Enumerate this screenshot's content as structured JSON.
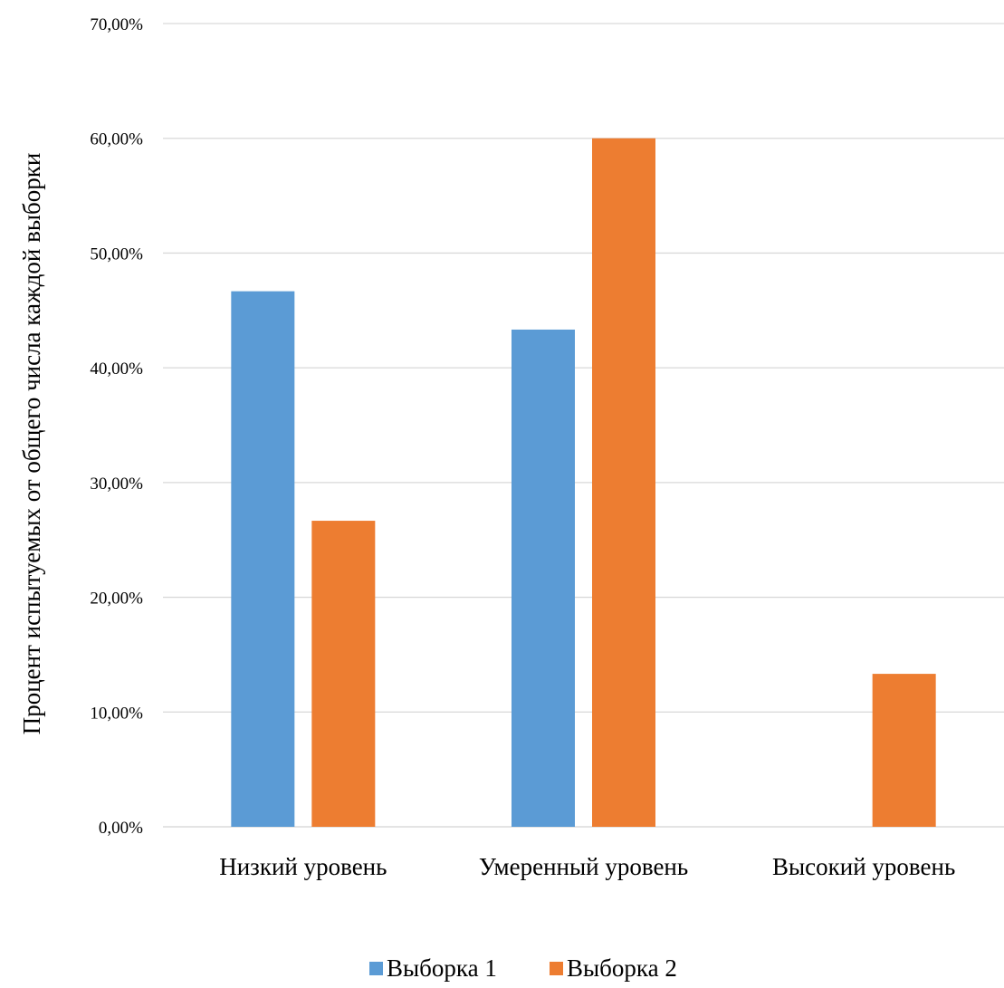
{
  "chart_data": {
    "type": "bar",
    "title": "",
    "xlabel": "",
    "ylabel": "Процент испытуемых от общего числа каждой выборки",
    "categories": [
      "Низкий уровень",
      "Умеренный уровень",
      "Высокий уровень"
    ],
    "series": [
      {
        "name": "Выборка 1",
        "color": "#5B9BD5",
        "values": [
          46.67,
          43.33,
          0
        ]
      },
      {
        "name": "Выборка 2",
        "color": "#ED7D31",
        "values": [
          26.67,
          60.0,
          13.33
        ]
      }
    ],
    "ylim": [
      0,
      70
    ],
    "yticks": [
      "0,00%",
      "10,00%",
      "20,00%",
      "30,00%",
      "40,00%",
      "50,00%",
      "60,00%",
      "70,00%"
    ],
    "grid": true,
    "legend_position": "bottom"
  }
}
